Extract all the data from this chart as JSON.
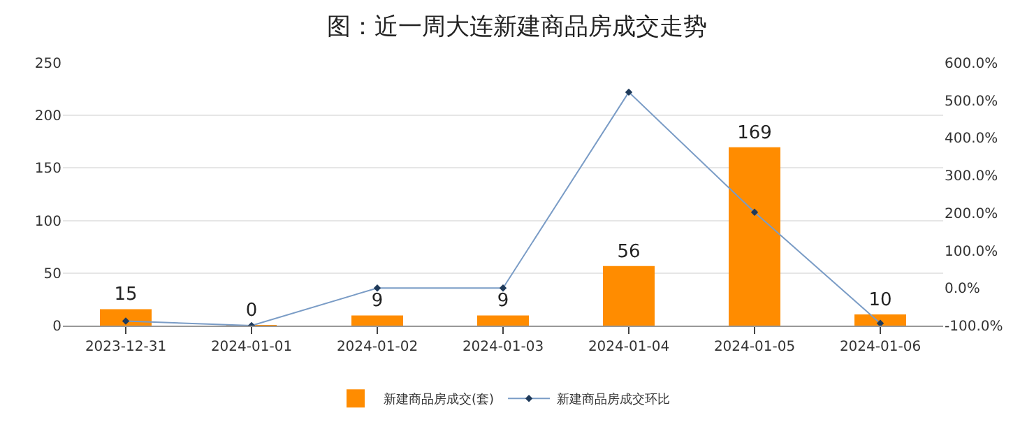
{
  "chart_data": {
    "type": "bar",
    "title": "图：近一周大连新建商品房成交走势",
    "categories": [
      "2023-12-31",
      "2024-01-01",
      "2024-01-02",
      "2024-01-03",
      "2024-01-04",
      "2024-01-05",
      "2024-01-06"
    ],
    "series": [
      {
        "name": "新建商品房成交(套)",
        "color": "#ff8c00",
        "values": [
          15,
          0,
          9,
          9,
          56,
          169,
          10
        ],
        "data_labels": true
      },
      {
        "name": "新建商品房成交环比",
        "type": "line",
        "axis": "y2",
        "color": "#7a9cc6",
        "marker": "diamond",
        "values": [
          -88,
          -100,
          0,
          0,
          522,
          202,
          -94
        ]
      }
    ],
    "ylim": [
      0,
      250
    ],
    "yticks": [
      0,
      50,
      100,
      150,
      200,
      250
    ],
    "y2lim": [
      -100,
      600
    ],
    "y2ticks": [
      {
        "value": -100,
        "label": "-100.0%"
      },
      {
        "value": 0,
        "label": "0.0%"
      },
      {
        "value": 100,
        "label": "100.0%"
      },
      {
        "value": 200,
        "label": "200.0%"
      },
      {
        "value": 300,
        "label": "300.0%"
      },
      {
        "value": 400,
        "label": "400.0%"
      },
      {
        "value": 500,
        "label": "500.0%"
      },
      {
        "value": 600,
        "label": "600.0%"
      }
    ],
    "grid": "y",
    "legend": "bottom"
  }
}
